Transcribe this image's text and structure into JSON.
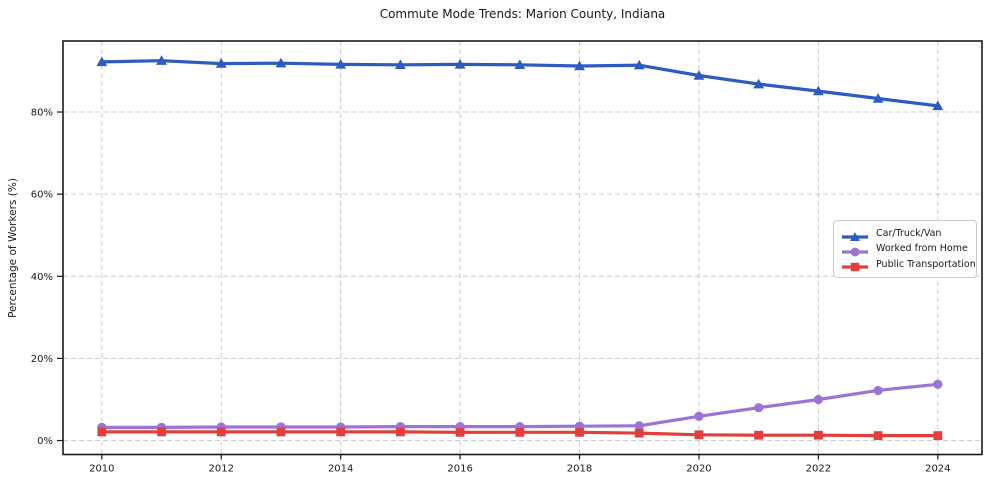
{
  "chart_data": {
    "type": "line",
    "title": "Commute Mode Trends: Marion County, Indiana",
    "xlabel": "",
    "ylabel": "Percentage of Workers (%)",
    "x": [
      2010,
      2011,
      2012,
      2013,
      2014,
      2015,
      2016,
      2017,
      2018,
      2019,
      2020,
      2021,
      2022,
      2023,
      2024
    ],
    "x_ticks": [
      2010,
      2012,
      2014,
      2016,
      2018,
      2020,
      2022,
      2024
    ],
    "x_tick_labels": [
      "2010",
      "2012",
      "2014",
      "2016",
      "2018",
      "2020",
      "2022",
      "2024"
    ],
    "y_ticks": [
      0,
      20,
      40,
      60,
      80
    ],
    "y_tick_labels": [
      "0%",
      "20%",
      "40%",
      "60%",
      "80%"
    ],
    "xlim": [
      2009.35,
      2024.74
    ],
    "ylim": [
      -3.4,
      97.3
    ],
    "grid": true,
    "grid_color": "#cccccc",
    "axis_color": "#1a1a1a",
    "background_color": "#ffffff",
    "legend_position": "center right",
    "legend_border_color": "#cccccc",
    "series": [
      {
        "name": "Car/Truck/Van",
        "color": "#2d5bc2",
        "marker": "triangle",
        "values": [
          92.2,
          92.5,
          91.8,
          91.9,
          91.6,
          91.5,
          91.6,
          91.5,
          91.2,
          91.4,
          88.9,
          86.8,
          85.1,
          83.3,
          81.5
        ]
      },
      {
        "name": "Worked from Home",
        "color": "#9b74d6",
        "marker": "circle",
        "values": [
          3.2,
          3.2,
          3.3,
          3.3,
          3.3,
          3.4,
          3.4,
          3.4,
          3.5,
          3.6,
          5.9,
          8.0,
          10.0,
          12.2,
          13.7
        ]
      },
      {
        "name": "Public Transportation",
        "color": "#e23e3e",
        "marker": "square",
        "values": [
          2.1,
          2.1,
          2.1,
          2.1,
          2.1,
          2.1,
          2.0,
          2.0,
          2.0,
          1.8,
          1.4,
          1.3,
          1.3,
          1.2,
          1.2
        ]
      }
    ]
  }
}
